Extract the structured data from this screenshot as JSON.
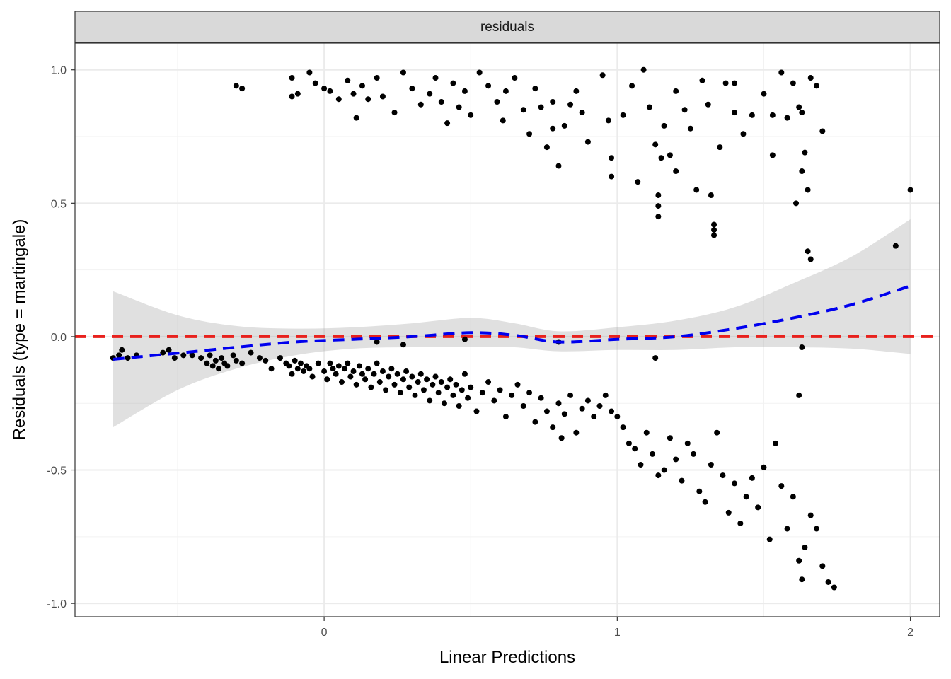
{
  "chart_data": {
    "type": "scatter",
    "facet_label": "residuals",
    "xlabel": "Linear Predictions",
    "ylabel": "Residuals (type = martingale)",
    "xlim": [
      -0.85,
      2.1
    ],
    "ylim": [
      -1.05,
      1.1
    ],
    "x_ticks": [
      {
        "value": 0,
        "label": "0"
      },
      {
        "value": 1,
        "label": "1"
      },
      {
        "value": 2,
        "label": "2"
      }
    ],
    "y_ticks": [
      {
        "value": -1.0,
        "label": "-1.0"
      },
      {
        "value": -0.5,
        "label": "-0.5"
      },
      {
        "value": 0.0,
        "label": "0.0"
      },
      {
        "value": 0.5,
        "label": "0.5"
      },
      {
        "value": 1.0,
        "label": "1.0"
      }
    ],
    "reference_line": {
      "y": 0,
      "color": "#e8211d",
      "style": "dashed"
    },
    "smooth": {
      "color": "#0000ee",
      "style": "dashed",
      "points": [
        {
          "x": -0.72,
          "y": -0.085,
          "lo": -0.34,
          "hi": 0.17
        },
        {
          "x": -0.5,
          "y": -0.062,
          "lo": -0.2,
          "hi": 0.08
        },
        {
          "x": -0.3,
          "y": -0.04,
          "lo": -0.12,
          "hi": 0.04
        },
        {
          "x": -0.1,
          "y": -0.02,
          "lo": -0.07,
          "hi": 0.03
        },
        {
          "x": 0.1,
          "y": -0.01,
          "lo": -0.045,
          "hi": 0.035
        },
        {
          "x": 0.3,
          "y": 0.0,
          "lo": -0.04,
          "hi": 0.05
        },
        {
          "x": 0.5,
          "y": 0.015,
          "lo": -0.04,
          "hi": 0.07
        },
        {
          "x": 0.65,
          "y": 0.005,
          "lo": -0.04,
          "hi": 0.05
        },
        {
          "x": 0.8,
          "y": -0.02,
          "lo": -0.055,
          "hi": 0.02
        },
        {
          "x": 1.0,
          "y": -0.01,
          "lo": -0.05,
          "hi": 0.035
        },
        {
          "x": 1.2,
          "y": 0.0,
          "lo": -0.05,
          "hi": 0.06
        },
        {
          "x": 1.4,
          "y": 0.03,
          "lo": -0.04,
          "hi": 0.11
        },
        {
          "x": 1.6,
          "y": 0.07,
          "lo": -0.04,
          "hi": 0.2
        },
        {
          "x": 1.8,
          "y": 0.12,
          "lo": -0.045,
          "hi": 0.3
        },
        {
          "x": 2.0,
          "y": 0.19,
          "lo": -0.065,
          "hi": 0.44
        }
      ]
    },
    "points": [
      [
        -0.72,
        -0.08
      ],
      [
        -0.7,
        -0.07
      ],
      [
        -0.69,
        -0.05
      ],
      [
        -0.67,
        -0.08
      ],
      [
        -0.64,
        -0.07
      ],
      [
        -0.55,
        -0.06
      ],
      [
        -0.53,
        -0.05
      ],
      [
        -0.51,
        -0.08
      ],
      [
        -0.48,
        -0.07
      ],
      [
        -0.45,
        -0.07
      ],
      [
        -0.42,
        -0.08
      ],
      [
        -0.4,
        -0.1
      ],
      [
        -0.39,
        -0.07
      ],
      [
        -0.38,
        -0.11
      ],
      [
        -0.37,
        -0.09
      ],
      [
        -0.36,
        -0.12
      ],
      [
        -0.35,
        -0.08
      ],
      [
        -0.34,
        -0.1
      ],
      [
        -0.33,
        -0.11
      ],
      [
        -0.31,
        -0.07
      ],
      [
        -0.3,
        -0.09
      ],
      [
        -0.28,
        -0.1
      ],
      [
        -0.25,
        -0.06
      ],
      [
        -0.22,
        -0.08
      ],
      [
        -0.2,
        -0.09
      ],
      [
        -0.18,
        -0.12
      ],
      [
        -0.15,
        -0.08
      ],
      [
        -0.13,
        -0.1
      ],
      [
        -0.12,
        -0.11
      ],
      [
        -0.11,
        -0.14
      ],
      [
        -0.1,
        -0.09
      ],
      [
        -0.09,
        -0.12
      ],
      [
        -0.08,
        -0.1
      ],
      [
        -0.07,
        -0.13
      ],
      [
        -0.06,
        -0.11
      ],
      [
        -0.05,
        -0.12
      ],
      [
        -0.04,
        -0.15
      ],
      [
        -0.02,
        -0.1
      ],
      [
        0.0,
        -0.13
      ],
      [
        0.01,
        -0.16
      ],
      [
        0.02,
        -0.1
      ],
      [
        0.03,
        -0.12
      ],
      [
        0.04,
        -0.14
      ],
      [
        0.05,
        -0.11
      ],
      [
        0.06,
        -0.17
      ],
      [
        0.07,
        -0.12
      ],
      [
        0.08,
        -0.1
      ],
      [
        0.09,
        -0.15
      ],
      [
        0.1,
        -0.13
      ],
      [
        0.11,
        -0.18
      ],
      [
        0.12,
        -0.11
      ],
      [
        0.13,
        -0.14
      ],
      [
        0.14,
        -0.16
      ],
      [
        0.15,
        -0.12
      ],
      [
        0.16,
        -0.19
      ],
      [
        0.17,
        -0.14
      ],
      [
        0.18,
        -0.1
      ],
      [
        0.19,
        -0.17
      ],
      [
        0.2,
        -0.13
      ],
      [
        0.21,
        -0.2
      ],
      [
        0.22,
        -0.15
      ],
      [
        0.23,
        -0.12
      ],
      [
        0.24,
        -0.18
      ],
      [
        0.25,
        -0.14
      ],
      [
        0.26,
        -0.21
      ],
      [
        0.27,
        -0.16
      ],
      [
        0.28,
        -0.13
      ],
      [
        0.29,
        -0.19
      ],
      [
        0.3,
        -0.15
      ],
      [
        0.31,
        -0.22
      ],
      [
        0.32,
        -0.17
      ],
      [
        0.33,
        -0.14
      ],
      [
        0.34,
        -0.2
      ],
      [
        0.35,
        -0.16
      ],
      [
        0.36,
        -0.24
      ],
      [
        0.37,
        -0.18
      ],
      [
        0.38,
        -0.15
      ],
      [
        0.39,
        -0.21
      ],
      [
        0.4,
        -0.17
      ],
      [
        0.41,
        -0.25
      ],
      [
        0.42,
        -0.19
      ],
      [
        0.43,
        -0.16
      ],
      [
        0.44,
        -0.22
      ],
      [
        0.45,
        -0.18
      ],
      [
        0.46,
        -0.26
      ],
      [
        0.47,
        -0.2
      ],
      [
        0.48,
        -0.14
      ],
      [
        0.49,
        -0.23
      ],
      [
        0.5,
        -0.19
      ],
      [
        0.52,
        -0.28
      ],
      [
        0.54,
        -0.21
      ],
      [
        0.56,
        -0.17
      ],
      [
        0.58,
        -0.24
      ],
      [
        0.6,
        -0.2
      ],
      [
        0.62,
        -0.3
      ],
      [
        0.64,
        -0.22
      ],
      [
        0.66,
        -0.18
      ],
      [
        0.68,
        -0.26
      ],
      [
        0.7,
        -0.21
      ],
      [
        0.72,
        -0.32
      ],
      [
        0.74,
        -0.23
      ],
      [
        0.76,
        -0.28
      ],
      [
        0.78,
        -0.34
      ],
      [
        0.8,
        -0.25
      ],
      [
        0.81,
        -0.38
      ],
      [
        0.82,
        -0.29
      ],
      [
        0.84,
        -0.22
      ],
      [
        0.86,
        -0.36
      ],
      [
        0.88,
        -0.27
      ],
      [
        0.9,
        -0.24
      ],
      [
        0.92,
        -0.3
      ],
      [
        0.94,
        -0.26
      ],
      [
        0.96,
        -0.22
      ],
      [
        0.98,
        -0.28
      ],
      [
        1.0,
        -0.3
      ],
      [
        1.02,
        -0.34
      ],
      [
        1.04,
        -0.4
      ],
      [
        1.06,
        -0.42
      ],
      [
        1.08,
        -0.48
      ],
      [
        1.1,
        -0.36
      ],
      [
        1.12,
        -0.44
      ],
      [
        1.14,
        -0.52
      ],
      [
        1.16,
        -0.5
      ],
      [
        1.18,
        -0.38
      ],
      [
        1.2,
        -0.46
      ],
      [
        1.22,
        -0.54
      ],
      [
        1.24,
        -0.4
      ],
      [
        1.26,
        -0.44
      ],
      [
        1.28,
        -0.58
      ],
      [
        1.3,
        -0.62
      ],
      [
        1.32,
        -0.48
      ],
      [
        1.34,
        -0.36
      ],
      [
        1.36,
        -0.52
      ],
      [
        1.38,
        -0.66
      ],
      [
        1.4,
        -0.55
      ],
      [
        1.42,
        -0.7
      ],
      [
        1.44,
        -0.6
      ],
      [
        1.46,
        -0.53
      ],
      [
        1.48,
        -0.64
      ],
      [
        1.5,
        -0.49
      ],
      [
        1.52,
        -0.76
      ],
      [
        1.54,
        -0.4
      ],
      [
        1.56,
        -0.56
      ],
      [
        1.58,
        -0.72
      ],
      [
        1.6,
        -0.6
      ],
      [
        1.62,
        -0.84
      ],
      [
        1.63,
        -0.91
      ],
      [
        1.64,
        -0.79
      ],
      [
        1.66,
        -0.67
      ],
      [
        1.68,
        -0.72
      ],
      [
        1.7,
        -0.86
      ],
      [
        1.72,
        -0.92
      ],
      [
        1.74,
        -0.94
      ],
      [
        1.62,
        -0.22
      ],
      [
        1.63,
        -0.04
      ],
      [
        1.13,
        -0.08
      ],
      [
        0.8,
        -0.02
      ],
      [
        0.48,
        -0.01
      ],
      [
        0.27,
        -0.03
      ],
      [
        0.18,
        -0.02
      ],
      [
        -0.3,
        0.94
      ],
      [
        -0.28,
        0.93
      ],
      [
        -0.11,
        0.97
      ],
      [
        -0.11,
        0.9
      ],
      [
        -0.09,
        0.91
      ],
      [
        -0.05,
        0.99
      ],
      [
        -0.03,
        0.95
      ],
      [
        0.0,
        0.93
      ],
      [
        0.02,
        0.92
      ],
      [
        0.05,
        0.89
      ],
      [
        0.08,
        0.96
      ],
      [
        0.1,
        0.91
      ],
      [
        0.11,
        0.82
      ],
      [
        0.13,
        0.94
      ],
      [
        0.15,
        0.89
      ],
      [
        0.18,
        0.97
      ],
      [
        0.2,
        0.9
      ],
      [
        0.24,
        0.84
      ],
      [
        0.27,
        0.99
      ],
      [
        0.3,
        0.93
      ],
      [
        0.33,
        0.87
      ],
      [
        0.36,
        0.91
      ],
      [
        0.38,
        0.97
      ],
      [
        0.4,
        0.88
      ],
      [
        0.42,
        0.8
      ],
      [
        0.44,
        0.95
      ],
      [
        0.46,
        0.86
      ],
      [
        0.48,
        0.92
      ],
      [
        0.5,
        0.83
      ],
      [
        0.53,
        0.99
      ],
      [
        0.56,
        0.94
      ],
      [
        0.59,
        0.88
      ],
      [
        0.62,
        0.92
      ],
      [
        0.65,
        0.97
      ],
      [
        0.68,
        0.85
      ],
      [
        0.7,
        0.76
      ],
      [
        0.72,
        0.93
      ],
      [
        0.74,
        0.86
      ],
      [
        0.76,
        0.71
      ],
      [
        0.78,
        0.88
      ],
      [
        0.8,
        0.64
      ],
      [
        0.82,
        0.79
      ],
      [
        0.84,
        0.87
      ],
      [
        0.86,
        0.92
      ],
      [
        0.88,
        0.84
      ],
      [
        0.9,
        0.73
      ],
      [
        0.95,
        0.98
      ],
      [
        0.98,
        0.67
      ],
      [
        0.98,
        0.6
      ],
      [
        1.02,
        0.83
      ],
      [
        1.05,
        0.94
      ],
      [
        1.07,
        0.58
      ],
      [
        1.09,
        1.0
      ],
      [
        1.11,
        0.86
      ],
      [
        1.13,
        0.72
      ],
      [
        1.14,
        0.53
      ],
      [
        1.14,
        0.49
      ],
      [
        1.14,
        0.45
      ],
      [
        1.16,
        0.79
      ],
      [
        1.18,
        0.68
      ],
      [
        1.2,
        0.92
      ],
      [
        1.23,
        0.85
      ],
      [
        1.25,
        0.78
      ],
      [
        1.27,
        0.55
      ],
      [
        1.29,
        0.96
      ],
      [
        1.31,
        0.87
      ],
      [
        1.32,
        0.53
      ],
      [
        1.33,
        0.42
      ],
      [
        1.33,
        0.4
      ],
      [
        1.33,
        0.38
      ],
      [
        1.35,
        0.71
      ],
      [
        1.37,
        0.95
      ],
      [
        1.4,
        0.84
      ],
      [
        1.43,
        0.76
      ],
      [
        1.46,
        0.83
      ],
      [
        1.5,
        0.91
      ],
      [
        1.53,
        0.68
      ],
      [
        1.56,
        0.99
      ],
      [
        1.58,
        0.82
      ],
      [
        1.6,
        0.95
      ],
      [
        1.61,
        0.5
      ],
      [
        1.62,
        0.86
      ],
      [
        1.63,
        0.62
      ],
      [
        1.64,
        0.69
      ],
      [
        1.65,
        0.55
      ],
      [
        1.65,
        0.32
      ],
      [
        1.66,
        0.29
      ],
      [
        1.68,
        0.94
      ],
      [
        1.7,
        0.77
      ],
      [
        1.95,
        0.34
      ],
      [
        2.0,
        0.55
      ],
      [
        1.66,
        0.97
      ],
      [
        1.63,
        0.84
      ],
      [
        1.53,
        0.83
      ],
      [
        1.4,
        0.95
      ],
      [
        1.2,
        0.62
      ],
      [
        1.15,
        0.67
      ],
      [
        0.97,
        0.81
      ],
      [
        0.78,
        0.78
      ],
      [
        0.61,
        0.81
      ]
    ]
  }
}
